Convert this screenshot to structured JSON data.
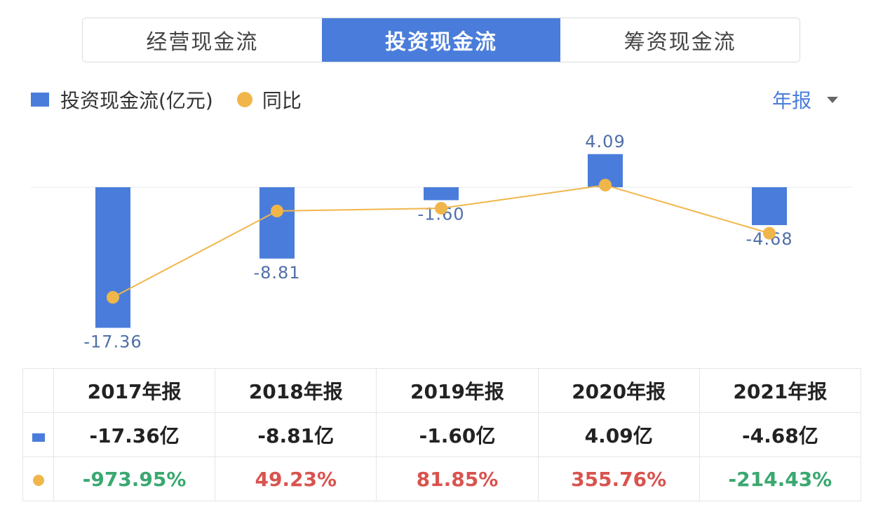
{
  "tabs": [
    {
      "label": "经营现金流",
      "active": false
    },
    {
      "label": "投资现金流",
      "active": true
    },
    {
      "label": "筹资现金流",
      "active": false
    }
  ],
  "legend": {
    "bar_label": "投资现金流(亿元)",
    "line_label": "同比"
  },
  "period_selector": {
    "label": "年报",
    "icon": "caret-down-icon"
  },
  "colors": {
    "bar": "#4a7ddb",
    "line": "#f0b64a",
    "accent": "#4a7ddb",
    "positive": "#d9534f",
    "negative": "#3aa870",
    "bar_label": "#4f6fa8"
  },
  "chart_data": {
    "type": "bar",
    "categories": [
      "2017年报",
      "2018年报",
      "2019年报",
      "2020年报",
      "2021年报"
    ],
    "series": [
      {
        "name": "投资现金流(亿元)",
        "type": "bar",
        "values": [
          -17.36,
          -8.81,
          -1.6,
          4.09,
          -4.68
        ],
        "labels": [
          "-17.36",
          "-8.81",
          "-1.60",
          "4.09",
          "-4.68"
        ]
      },
      {
        "name": "同比",
        "type": "line",
        "values": [
          -973.95,
          49.23,
          81.85,
          355.76,
          -214.43
        ]
      }
    ],
    "legend_position": "top-left",
    "grid": false
  },
  "table": {
    "headers": [
      "2017年报",
      "2018年报",
      "2019年报",
      "2020年报",
      "2021年报"
    ],
    "values_row": [
      "-17.36亿",
      "-8.81亿",
      "-1.60亿",
      "4.09亿",
      "-4.68亿"
    ],
    "yoy_row": [
      "-973.95%",
      "49.23%",
      "81.85%",
      "355.76%",
      "-214.43%"
    ],
    "yoy_sign": [
      "neg",
      "pos",
      "pos",
      "pos",
      "neg"
    ]
  }
}
